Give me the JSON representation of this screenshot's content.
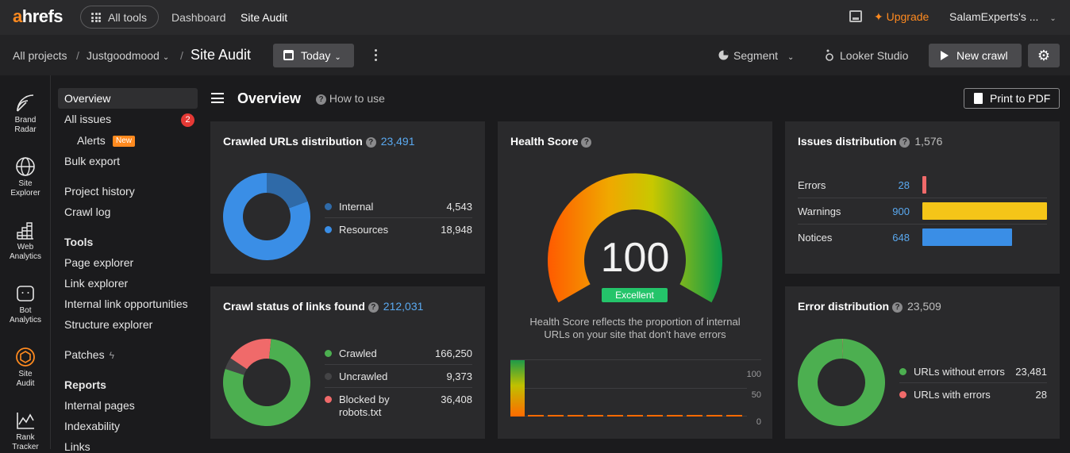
{
  "topbar": {
    "logo_a": "a",
    "logo_rest": "hrefs",
    "all_tools": "All tools",
    "nav_dashboard": "Dashboard",
    "nav_site_audit": "Site Audit",
    "upgrade": "Upgrade",
    "account": "SalamExperts's ...",
    "accent_color": "#ff8a1f"
  },
  "subbar": {
    "crumb_projects": "All projects",
    "crumb_sep1": "/",
    "crumb_project": "Justgoodmood",
    "crumb_sep2": "/",
    "crumb_title": "Site Audit",
    "date_button": "Today",
    "segment": "Segment",
    "looker": "Looker Studio",
    "new_crawl": "New crawl"
  },
  "rail": [
    {
      "label1": "Brand",
      "label2": "Radar",
      "icon": "brand-radar-icon"
    },
    {
      "label1": "Site",
      "label2": "Explorer",
      "icon": "globe-icon"
    },
    {
      "label1": "Web",
      "label2": "Analytics",
      "icon": "bars-icon"
    },
    {
      "label1": "Bot",
      "label2": "Analytics",
      "icon": "bot-icon"
    },
    {
      "label1": "Site",
      "label2": "Audit",
      "icon": "site-audit-icon"
    },
    {
      "label1": "Rank",
      "label2": "Tracker",
      "icon": "rank-icon"
    }
  ],
  "sidebar": {
    "overview": "Overview",
    "all_issues": "All issues",
    "all_issues_count": "2",
    "alerts": "Alerts",
    "alerts_badge": "New",
    "bulk_export": "Bulk export",
    "project_history": "Project history",
    "crawl_log": "Crawl log",
    "tools_head": "Tools",
    "page_explorer": "Page explorer",
    "link_explorer": "Link explorer",
    "internal_link_opps": "Internal link opportunities",
    "structure_explorer": "Structure explorer",
    "patches": "Patches",
    "reports_head": "Reports",
    "internal_pages": "Internal pages",
    "indexability": "Indexability",
    "links": "Links"
  },
  "main": {
    "title": "Overview",
    "how_to_use": "How to use",
    "print": "Print to PDF"
  },
  "crawled_urls": {
    "title": "Crawled URLs distribution",
    "total": "23,491",
    "items": [
      {
        "label": "Internal",
        "value": "4,543",
        "color": "#2f6aa8"
      },
      {
        "label": "Resources",
        "value": "18,948",
        "color": "#3a8ee6"
      }
    ]
  },
  "crawl_status": {
    "title": "Crawl status of links found",
    "total": "212,031",
    "items": [
      {
        "label": "Crawled",
        "value": "166,250",
        "color": "#4caf50"
      },
      {
        "label": "Uncrawled",
        "value": "9,373",
        "color": "#444446"
      },
      {
        "label": "Blocked by",
        "label2": "robots.txt",
        "value": "36,408",
        "color": "#f06a6a"
      }
    ]
  },
  "health": {
    "title": "Health Score",
    "score": "100",
    "rating": "Excellent",
    "desc1": "Health Score reflects the proportion of internal",
    "desc2": "URLs on your site that don't have errors",
    "axis": [
      "100",
      "50",
      "0"
    ],
    "rating_color": "#24c46a"
  },
  "issues": {
    "title": "Issues distribution",
    "total": "1,576",
    "rows": [
      {
        "label": "Errors",
        "value": "28",
        "color": "#f06a6a"
      },
      {
        "label": "Warnings",
        "value": "900",
        "color": "#f5c518"
      },
      {
        "label": "Notices",
        "value": "648",
        "color": "#3a8ee6"
      }
    ]
  },
  "errors": {
    "title": "Error distribution",
    "total": "23,509",
    "items": [
      {
        "label": "URLs without errors",
        "value": "23,481",
        "color": "#4caf50"
      },
      {
        "label": "URLs with errors",
        "value": "28",
        "color": "#f06a6a"
      }
    ]
  }
}
